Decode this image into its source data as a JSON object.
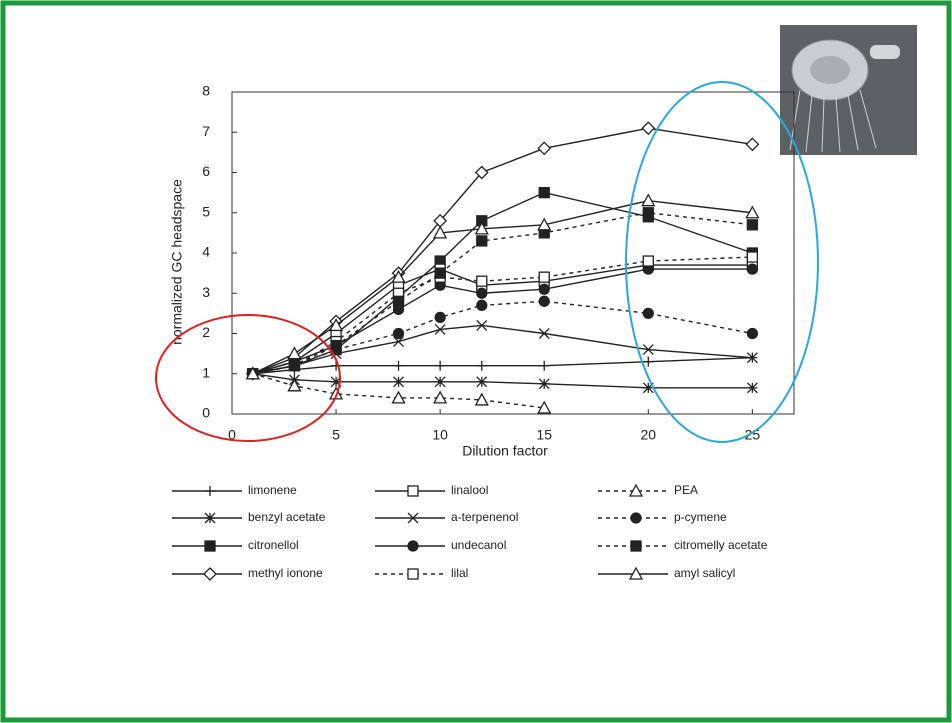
{
  "chart_data": {
    "type": "line",
    "x_label": "Dilution factor",
    "y_label": "normalized GC headspace",
    "x": [
      1,
      3,
      5,
      8,
      10,
      12,
      15,
      20,
      25
    ],
    "xlim": [
      0,
      27
    ],
    "xticks": [
      0,
      5,
      10,
      15,
      20,
      25
    ],
    "ylim": [
      0,
      8
    ],
    "yticks": [
      0,
      1,
      2,
      3,
      4,
      5,
      6,
      7,
      8
    ],
    "series": [
      {
        "name": "limonene",
        "color": "#222222",
        "marker": "plus",
        "dash": "solid",
        "values": [
          1,
          1.1,
          1.2,
          1.2,
          1.2,
          1.2,
          1.2,
          1.3,
          1.4
        ]
      },
      {
        "name": "benzyl acetate",
        "color": "#222222",
        "marker": "asterisk",
        "dash": "solid",
        "values": [
          1,
          0.85,
          0.8,
          0.8,
          0.8,
          0.8,
          0.75,
          0.65,
          0.65
        ]
      },
      {
        "name": "citronellol",
        "color": "#222222",
        "marker": "filled-square",
        "dash": "solid",
        "values": [
          1,
          1.2,
          1.6,
          2.9,
          3.8,
          4.8,
          5.5,
          4.9,
          4.0
        ]
      },
      {
        "name": "methyl ionone",
        "color": "#222222",
        "marker": "diamond",
        "dash": "solid",
        "values": [
          1,
          1.4,
          2.3,
          3.5,
          4.8,
          6.0,
          6.6,
          7.1,
          6.7
        ]
      },
      {
        "name": "linalool",
        "color": "#222222",
        "marker": "open-square",
        "dash": "solid",
        "values": [
          1,
          1.3,
          2.0,
          3.2,
          3.6,
          3.2,
          3.3,
          3.7,
          3.7
        ]
      },
      {
        "name": "a-terpenenol",
        "color": "#222222",
        "marker": "x",
        "dash": "solid",
        "values": [
          1,
          1.2,
          1.5,
          1.8,
          2.1,
          2.2,
          2.0,
          1.6,
          1.4
        ]
      },
      {
        "name": "undecanol",
        "color": "#222222",
        "marker": "filled-circle",
        "dash": "solid",
        "values": [
          1,
          1.3,
          1.7,
          2.6,
          3.2,
          3.0,
          3.1,
          3.6,
          3.6
        ]
      },
      {
        "name": "lilal",
        "color": "#222222",
        "marker": "open-square",
        "dash": "dotted",
        "values": [
          1,
          1.2,
          1.8,
          3.0,
          3.4,
          3.3,
          3.4,
          3.8,
          3.9
        ]
      },
      {
        "name": "PEA",
        "color": "#222222",
        "marker": "triangle",
        "dash": "dotted",
        "values": [
          1,
          0.7,
          0.5,
          0.4,
          0.4,
          0.35,
          0.15,
          null,
          null
        ]
      },
      {
        "name": "p-cymene",
        "color": "#222222",
        "marker": "filled-circle",
        "dash": "dotted",
        "values": [
          1,
          1.2,
          1.6,
          2.0,
          2.4,
          2.7,
          2.8,
          2.5,
          2.0
        ]
      },
      {
        "name": "citromelly acetate",
        "color": "#222222",
        "marker": "filled-square",
        "dash": "dotted",
        "values": [
          1,
          1.2,
          1.7,
          2.8,
          3.5,
          4.3,
          4.5,
          5.0,
          4.7
        ]
      },
      {
        "name": "amyl salicyl",
        "color": "#222222",
        "marker": "triangle",
        "dash": "solid",
        "values": [
          1,
          1.5,
          2.2,
          3.4,
          4.5,
          4.6,
          4.7,
          5.3,
          5.0
        ]
      }
    ]
  }
}
